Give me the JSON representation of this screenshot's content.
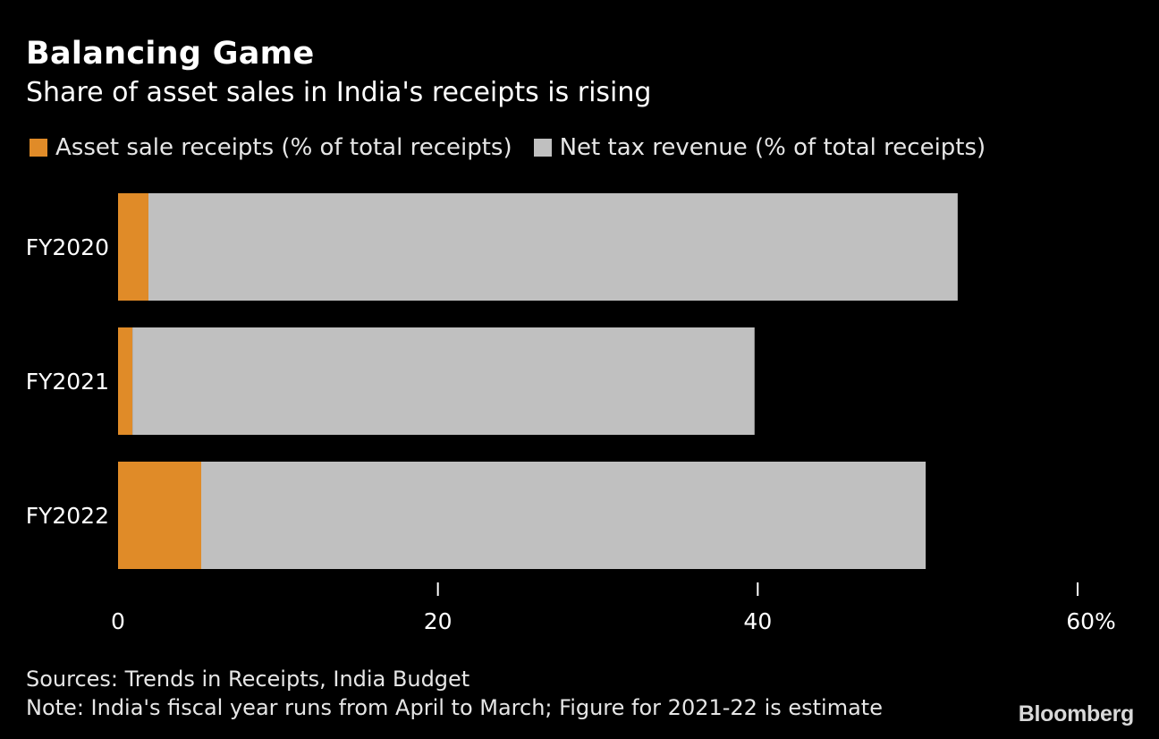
{
  "header": {
    "title": "Balancing Game",
    "subtitle": "Share of asset sales in India's receipts is rising"
  },
  "footer": {
    "sources": "Sources: Trends in Receipts, India Budget",
    "note": "Note: India's fiscal year runs from April to March; Figure for 2021-22 is estimate",
    "brand": "Bloomberg"
  },
  "colors": {
    "background": "#000000",
    "asset": "#e08b28",
    "tax": "#c0c0c0",
    "text": "#ffffff"
  },
  "chart_data": {
    "type": "bar",
    "orientation": "horizontal",
    "stacked": true,
    "categories": [
      "FY2020",
      "FY2021",
      "FY2022"
    ],
    "series": [
      {
        "name": "Asset sale receipts (% of total receipts)",
        "values": [
          1.9,
          0.9,
          5.2
        ],
        "color": "#e08b28"
      },
      {
        "name": "Net tax revenue (% of total receipts)",
        "values": [
          50.6,
          38.9,
          45.3
        ],
        "color": "#c0c0c0"
      }
    ],
    "xlim": [
      0,
      60
    ],
    "x_ticks": [
      0,
      20,
      40,
      60
    ],
    "x_tick_labels": [
      "0",
      "20",
      "40",
      "60%"
    ],
    "grid": false,
    "legend_position": "top"
  }
}
